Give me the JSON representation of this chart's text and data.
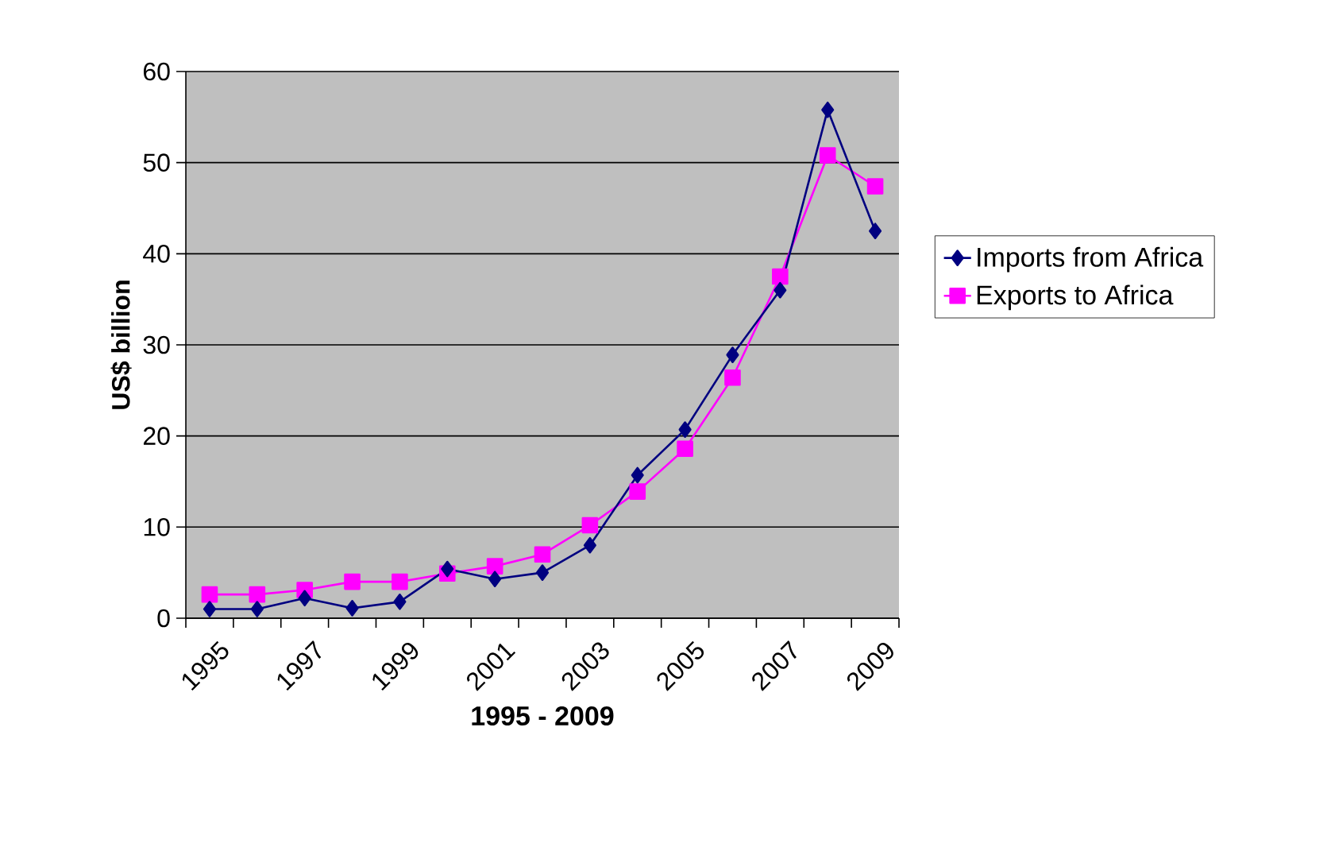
{
  "chart_data": {
    "type": "line",
    "xlabel": "1995 - 2009",
    "ylabel": "US$ billion",
    "categories": [
      "1995",
      null,
      "1997",
      null,
      "1999",
      null,
      "2001",
      null,
      "2003",
      null,
      "2005",
      null,
      "2007",
      null,
      "2009"
    ],
    "series": [
      {
        "name": "Imports from Africa",
        "color": "#000080",
        "marker": "diamond",
        "values": [
          1.0,
          1.0,
          2.2,
          1.1,
          1.8,
          5.4,
          4.3,
          5.0,
          8.0,
          15.7,
          20.7,
          28.9,
          36.0,
          55.8,
          42.5
        ]
      },
      {
        "name": "Exports to Africa",
        "color": "#ff00ff",
        "marker": "square",
        "values": [
          2.6,
          2.6,
          3.1,
          4.0,
          4.0,
          4.9,
          5.7,
          7.0,
          10.2,
          13.9,
          18.6,
          26.4,
          37.5,
          50.8,
          47.4
        ]
      }
    ],
    "ylim": [
      0,
      60
    ],
    "yticks": [
      0,
      10,
      20,
      30,
      40,
      50,
      60
    ],
    "grid": "y",
    "legend": "right",
    "line_style": "solid"
  }
}
